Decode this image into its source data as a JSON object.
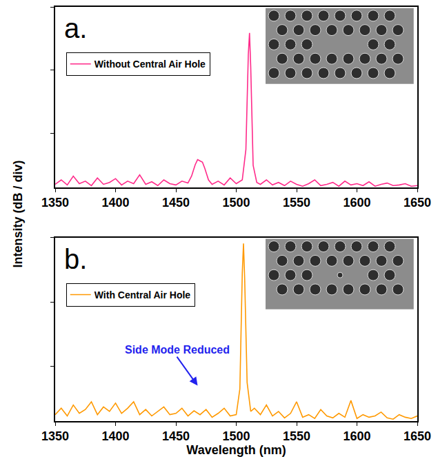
{
  "chart_data": [
    {
      "type": "line",
      "title": "a.",
      "y_label": "Intensity (dB / div)",
      "x": [
        1350,
        1355,
        1360,
        1365,
        1370,
        1375,
        1380,
        1385,
        1390,
        1395,
        1400,
        1405,
        1410,
        1415,
        1420,
        1425,
        1430,
        1435,
        1440,
        1445,
        1450,
        1455,
        1460,
        1463,
        1466,
        1468,
        1470,
        1472,
        1474,
        1477,
        1480,
        1485,
        1490,
        1495,
        1500,
        1505,
        1508,
        1510,
        1511,
        1512,
        1514,
        1517,
        1520,
        1525,
        1530,
        1535,
        1540,
        1545,
        1550,
        1555,
        1560,
        1565,
        1570,
        1575,
        1580,
        1585,
        1590,
        1595,
        1600,
        1605,
        1610,
        1615,
        1620,
        1625,
        1630,
        1635,
        1640,
        1645,
        1650
      ],
      "series": [
        {
          "name": "Without Central Air Hole",
          "color": "#ff2a8a",
          "values": [
            0.05,
            0.12,
            0.04,
            0.18,
            0.06,
            0.1,
            0.03,
            0.15,
            0.05,
            0.08,
            0.14,
            0.04,
            0.1,
            0.06,
            0.2,
            0.05,
            0.09,
            0.03,
            0.12,
            0.06,
            0.04,
            0.1,
            0.07,
            0.18,
            0.36,
            0.44,
            0.42,
            0.4,
            0.3,
            0.12,
            0.05,
            0.1,
            0.04,
            0.15,
            0.06,
            0.12,
            0.6,
            2.1,
            2.44,
            1.9,
            0.35,
            0.08,
            0.05,
            0.12,
            0.04,
            0.08,
            0.03,
            0.1,
            0.05,
            0.02,
            0.06,
            0.12,
            0.03,
            0.05,
            0.08,
            0.02,
            0.1,
            0.04,
            0.06,
            0.03,
            0.09,
            0.02,
            0.05,
            0.07,
            0.03,
            0.04,
            0.06,
            0.02,
            0.03
          ]
        }
      ],
      "xlim": [
        1350,
        1650
      ],
      "xticks": [
        1350,
        1400,
        1450,
        1500,
        1550,
        1600,
        1650
      ],
      "ylim": [
        0,
        2.85
      ],
      "yticks": [
        0.85,
        1.85,
        2.85
      ],
      "tick_labels": "x",
      "legend": "top left"
    },
    {
      "type": "line",
      "title": "b.",
      "x_label": "Wavelength (nm)",
      "x": [
        1350,
        1355,
        1360,
        1365,
        1370,
        1375,
        1380,
        1385,
        1390,
        1395,
        1400,
        1405,
        1410,
        1415,
        1420,
        1425,
        1430,
        1435,
        1440,
        1445,
        1450,
        1455,
        1460,
        1465,
        1470,
        1475,
        1480,
        1485,
        1490,
        1495,
        1500,
        1503,
        1505,
        1506,
        1507,
        1509,
        1512,
        1515,
        1520,
        1525,
        1530,
        1535,
        1540,
        1545,
        1550,
        1555,
        1560,
        1565,
        1570,
        1575,
        1580,
        1585,
        1590,
        1595,
        1600,
        1605,
        1610,
        1615,
        1620,
        1625,
        1630,
        1635,
        1640,
        1645,
        1650
      ],
      "series": [
        {
          "name": "With Central Air Hole",
          "color": "#ff9900",
          "values": [
            0.1,
            0.2,
            0.08,
            0.25,
            0.12,
            0.18,
            0.3,
            0.1,
            0.22,
            0.15,
            0.28,
            0.12,
            0.2,
            0.3,
            0.1,
            0.18,
            0.08,
            0.15,
            0.22,
            0.1,
            0.12,
            0.2,
            0.08,
            0.16,
            0.1,
            0.18,
            0.06,
            0.12,
            0.2,
            0.08,
            0.1,
            0.5,
            2.3,
            2.76,
            2.2,
            0.6,
            0.15,
            0.2,
            0.1,
            0.25,
            0.08,
            0.15,
            0.05,
            0.12,
            0.3,
            0.06,
            0.1,
            0.04,
            0.18,
            0.08,
            0.05,
            0.12,
            0.06,
            0.32,
            0.04,
            0.1,
            0.06,
            0.08,
            0.14,
            0.05,
            0.03,
            0.1,
            0.06,
            0.04,
            0.08
          ]
        }
      ],
      "annotations": [
        {
          "text": "Side Mode Reduced",
          "x": 1468,
          "y": 0.55
        }
      ],
      "xlim": [
        1350,
        1650
      ],
      "xticks": [
        1350,
        1400,
        1450,
        1500,
        1550,
        1600,
        1650
      ],
      "ylim": [
        0,
        2.85
      ],
      "yticks": [
        0.85,
        1.85,
        2.85
      ],
      "tick_labels": "x",
      "legend": "top left"
    }
  ]
}
